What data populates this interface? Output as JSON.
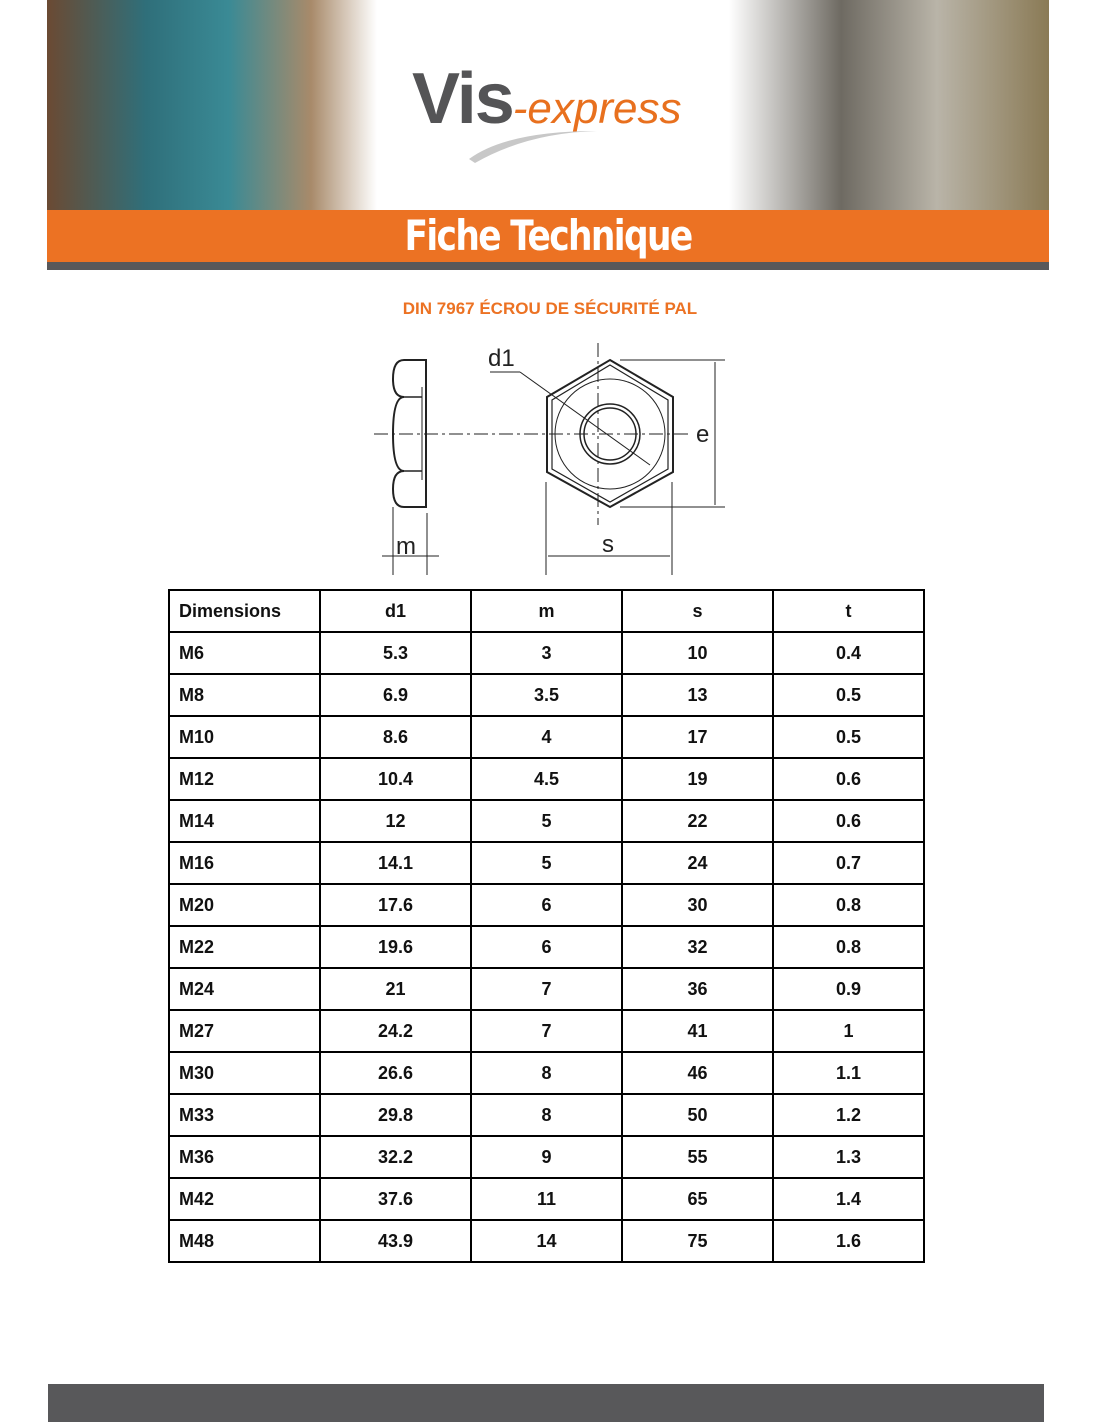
{
  "header": {
    "logo_main": "Vis",
    "logo_suffix": "-express",
    "banner_title": "Fiche Technique"
  },
  "product_title": "DIN 7967 ÉCROU DE SÉCURITÉ PAL",
  "diagram": {
    "labels": {
      "d1": "d1",
      "e": "e",
      "s": "s",
      "m": "m"
    }
  },
  "table": {
    "headers": [
      "Dimensions",
      "d1",
      "m",
      "s",
      "t"
    ],
    "rows": [
      [
        "M6",
        "5.3",
        "3",
        "10",
        "0.4"
      ],
      [
        "M8",
        "6.9",
        "3.5",
        "13",
        "0.5"
      ],
      [
        "M10",
        "8.6",
        "4",
        "17",
        "0.5"
      ],
      [
        "M12",
        "10.4",
        "4.5",
        "19",
        "0.6"
      ],
      [
        "M14",
        "12",
        "5",
        "22",
        "0.6"
      ],
      [
        "M16",
        "14.1",
        "5",
        "24",
        "0.7"
      ],
      [
        "M20",
        "17.6",
        "6",
        "30",
        "0.8"
      ],
      [
        "M22",
        "19.6",
        "6",
        "32",
        "0.8"
      ],
      [
        "M24",
        "21",
        "7",
        "36",
        "0.9"
      ],
      [
        "M27",
        "24.2",
        "7",
        "41",
        "1"
      ],
      [
        "M30",
        "26.6",
        "8",
        "46",
        "1.1"
      ],
      [
        "M33",
        "29.8",
        "8",
        "50",
        "1.2"
      ],
      [
        "M36",
        "32.2",
        "9",
        "55",
        "1.3"
      ],
      [
        "M42",
        "37.6",
        "11",
        "65",
        "1.4"
      ],
      [
        "M48",
        "43.9",
        "14",
        "75",
        "1.6"
      ]
    ]
  },
  "colors": {
    "accent": "#ec7223",
    "dark": "#58585a"
  }
}
